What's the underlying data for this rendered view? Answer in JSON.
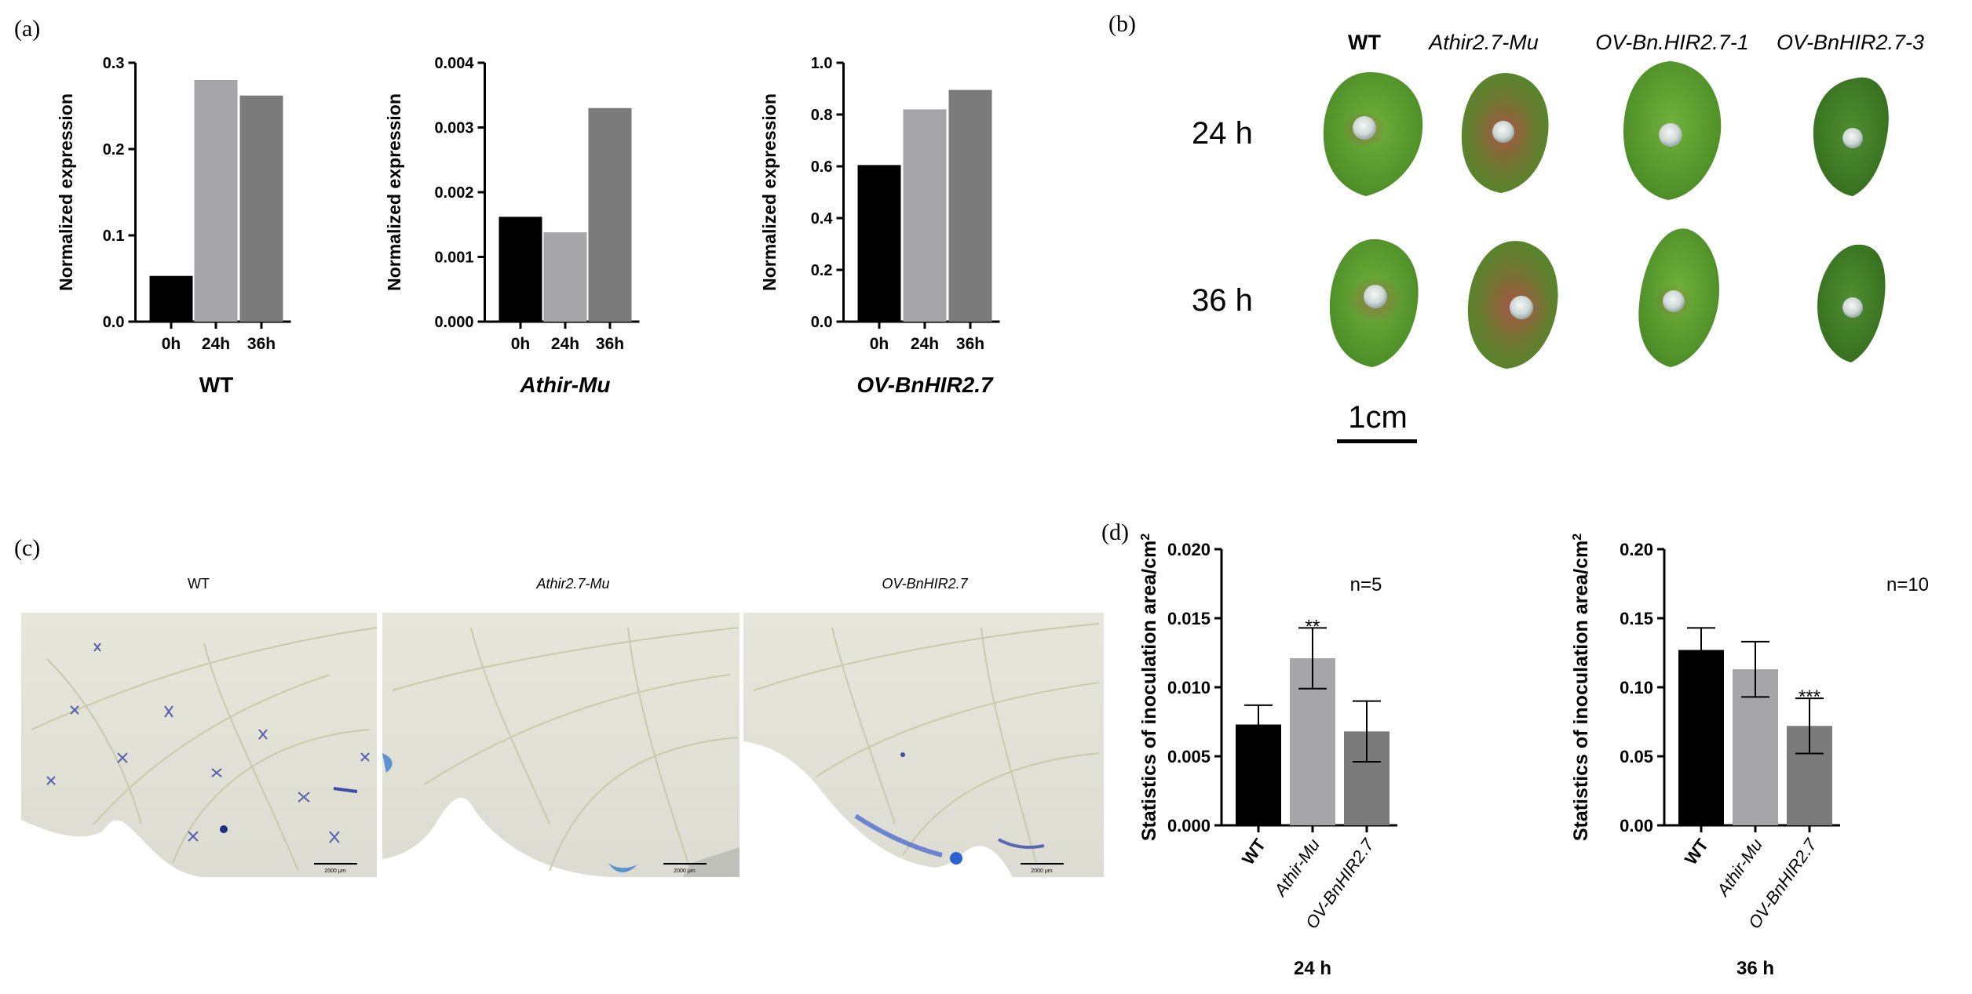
{
  "panel_labels": {
    "a": "(a)",
    "b": "(b)",
    "c": "(c)",
    "d": "(d)"
  },
  "chart_data": [
    {
      "id": "a1",
      "type": "bar",
      "categories": [
        "0h",
        "24h",
        "36h"
      ],
      "values": [
        0.053,
        0.28,
        0.262
      ],
      "colors": [
        "#000000",
        "#a5a5a8",
        "#7b7b7b"
      ],
      "ylabel": "Normalized expression",
      "xlabel": "WT",
      "xlabel_italic": false,
      "ylim": [
        0,
        0.3
      ],
      "yticks": [
        0,
        0.1,
        0.2,
        0.3
      ],
      "ytick_labels": [
        "0.0",
        "0.1",
        "0.2",
        "0.3"
      ]
    },
    {
      "id": "a2",
      "type": "bar",
      "categories": [
        "0h",
        "24h",
        "36h"
      ],
      "values": [
        0.00162,
        0.00138,
        0.0033
      ],
      "colors": [
        "#000000",
        "#a5a5a8",
        "#7b7b7b"
      ],
      "ylabel": "Normalized expression",
      "xlabel": "Athir-Mu",
      "xlabel_italic": true,
      "ylim": [
        0,
        0.004
      ],
      "yticks": [
        0,
        0.001,
        0.002,
        0.003,
        0.004
      ],
      "ytick_labels": [
        "0.000",
        "0.001",
        "0.002",
        "0.003",
        "0.004"
      ]
    },
    {
      "id": "a3",
      "type": "bar",
      "categories": [
        "0h",
        "24h",
        "36h"
      ],
      "values": [
        0.605,
        0.82,
        0.895
      ],
      "colors": [
        "#000000",
        "#a5a5a8",
        "#7b7b7b"
      ],
      "ylabel": "Normalized expression",
      "xlabel": "OV-BnHIR2.7",
      "xlabel_italic": true,
      "ylim": [
        0,
        1.0
      ],
      "yticks": [
        0,
        0.2,
        0.4,
        0.6,
        0.8,
        1.0
      ],
      "ytick_labels": [
        "0.0",
        "0.2",
        "0.4",
        "0.6",
        "0.8",
        "1.0"
      ]
    },
    {
      "id": "d1",
      "type": "bar",
      "categories": [
        "WT",
        "Athir-Mu",
        "OV-BnHIR2.7"
      ],
      "category_italic": [
        false,
        true,
        true
      ],
      "values": [
        0.0073,
        0.0121,
        0.0068
      ],
      "errors": [
        0.0014,
        0.0022,
        0.0022
      ],
      "significance": [
        "",
        "**",
        ""
      ],
      "colors": [
        "#000000",
        "#a5a5a8",
        "#7b7b7b"
      ],
      "ylabel": "Statistics of inoculation area/cm",
      "ylabel_sup": "2",
      "xlabel": "24 h",
      "annotation": "n=5",
      "ylim": [
        0,
        0.02
      ],
      "yticks": [
        0,
        0.005,
        0.01,
        0.015,
        0.02
      ],
      "ytick_labels": [
        "0.000",
        "0.005",
        "0.010",
        "0.015",
        "0.020"
      ]
    },
    {
      "id": "d2",
      "type": "bar",
      "categories": [
        "WT",
        "Athir-Mu",
        "OV-BnHIR2.7"
      ],
      "category_italic": [
        false,
        true,
        true
      ],
      "values": [
        0.127,
        0.113,
        0.072
      ],
      "errors": [
        0.016,
        0.02,
        0.02
      ],
      "significance": [
        "",
        "",
        "***"
      ],
      "colors": [
        "#000000",
        "#a5a5a8",
        "#7b7b7b"
      ],
      "ylabel": "Statistics of inoculation area/cm",
      "ylabel_sup": "2",
      "xlabel": "36 h",
      "annotation": "n=10",
      "ylim": [
        0,
        0.2
      ],
      "yticks": [
        0,
        0.05,
        0.1,
        0.15,
        0.2
      ],
      "ytick_labels": [
        "0.00",
        "0.05",
        "0.10",
        "0.15",
        "0.20"
      ]
    }
  ],
  "panel_b": {
    "columns": [
      "WT",
      "Athir2.7-Mu",
      "OV-Bn.HIR2.7-1",
      "OV-BnHIR2.7-3"
    ],
    "rows": [
      "24 h",
      "36 h"
    ],
    "scale_label": "1cm"
  },
  "panel_c": {
    "titles": [
      "WT",
      "Athir2.7-Mu",
      "OV-BnHIR2.7"
    ],
    "scale_label": "2000 μm"
  }
}
